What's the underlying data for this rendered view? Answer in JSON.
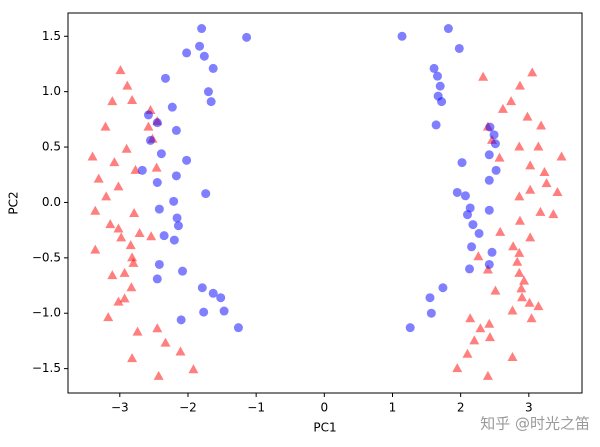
{
  "chart_data": {
    "type": "scatter",
    "x_label": "PC1",
    "y_label": "PC2",
    "xlim": [
      -3.76,
      3.78
    ],
    "ylim": [
      -1.72,
      1.71
    ],
    "xticks": [
      {
        "value": -3,
        "label": "−3"
      },
      {
        "value": -2,
        "label": "−2"
      },
      {
        "value": -1,
        "label": "−1"
      },
      0,
      1,
      2,
      3
    ],
    "yticks": [
      {
        "value": -1.5,
        "label": "−1.5"
      },
      {
        "value": -1.0,
        "label": "−1.0"
      },
      {
        "value": -0.5,
        "label": "−0.5"
      },
      {
        "value": 0.0,
        "label": "0.0"
      },
      0.5,
      {
        "value": 1.0,
        "label": "1.0"
      },
      1.5
    ],
    "alpha": 0.5,
    "series": [
      {
        "marker": "triangle",
        "color": "#ff0000",
        "x": [
          -2.99,
          -2.89,
          -3.11,
          -2.82,
          -2.55,
          -2.45,
          -2.58,
          -3.21,
          -2.52,
          -2.9,
          -3.4,
          -3.08,
          -2.77,
          -2.46,
          -3.31,
          -3.02,
          -3.2,
          -3.36,
          -2.79,
          -3.14,
          -3.02,
          -2.71,
          -2.98,
          -2.84,
          -2.54,
          -2.82,
          -2.8,
          -3.36,
          -2.93,
          -2.83,
          -3.11,
          -2.93,
          -3.02,
          -3.17,
          -2.45,
          -2.74,
          -2.33,
          -2.11,
          -2.82,
          -1.92,
          -2.43,
          2.33,
          3.05,
          2.87,
          2.74,
          2.62,
          2.98,
          3.18,
          2.4,
          2.46,
          2.86,
          3.14,
          3.48,
          2.57,
          3.02,
          3.23,
          3.26,
          3.42,
          3.02,
          2.86,
          3.17,
          3.36,
          2.87,
          2.58,
          3.02,
          2.77,
          2.86,
          2.26,
          2.83,
          2.4,
          2.86,
          2.93,
          2.89,
          2.9,
          3.01,
          3.14,
          2.51,
          2.76,
          3.04,
          2.14,
          2.29,
          2.42,
          2.43,
          2.2,
          2.76,
          2.1,
          1.95,
          2.4
        ],
        "y": [
          1.19,
          1.05,
          0.91,
          0.92,
          0.83,
          0.73,
          0.68,
          0.68,
          0.57,
          0.48,
          0.41,
          0.36,
          0.29,
          0.31,
          0.21,
          0.14,
          0.05,
          -0.08,
          -0.1,
          -0.2,
          -0.24,
          -0.28,
          -0.32,
          -0.39,
          -0.31,
          -0.5,
          -0.55,
          -0.43,
          -0.64,
          -0.77,
          -0.66,
          -0.87,
          -0.9,
          -1.04,
          -1.14,
          -1.17,
          -1.27,
          -1.35,
          -1.41,
          -1.51,
          -1.57,
          1.13,
          1.17,
          1.05,
          0.91,
          0.84,
          0.77,
          0.69,
          0.68,
          0.56,
          0.5,
          0.5,
          0.41,
          0.4,
          0.33,
          0.27,
          0.17,
          0.09,
          0.11,
          0.05,
          -0.09,
          -0.11,
          -0.17,
          -0.27,
          -0.32,
          -0.4,
          -0.46,
          -0.49,
          -0.54,
          -0.61,
          -0.64,
          -0.71,
          -0.78,
          -0.86,
          -0.91,
          -0.94,
          -0.8,
          -0.98,
          -1.05,
          -1.05,
          -1.14,
          -1.1,
          -1.22,
          -1.25,
          -1.4,
          -1.37,
          -1.5,
          -1.57
        ]
      },
      {
        "marker": "circle",
        "color": "#0000ff",
        "x": [
          -1.8,
          -1.14,
          -1.83,
          -2.02,
          -1.76,
          -1.63,
          -2.33,
          -1.7,
          -1.66,
          -2.23,
          -2.58,
          -2.45,
          -2.17,
          -2.55,
          -2.39,
          -2.02,
          -2.67,
          -2.17,
          -2.45,
          -1.74,
          -2.21,
          -2.42,
          -2.16,
          -2.14,
          -2.35,
          -2.2,
          -2.42,
          -2.08,
          -2.45,
          -1.79,
          -1.63,
          -1.52,
          -1.47,
          -1.77,
          -2.1,
          -1.26,
          1.14,
          1.82,
          1.98,
          1.61,
          1.66,
          1.7,
          1.67,
          1.72,
          1.64,
          2.43,
          2.49,
          2.51,
          2.42,
          2.02,
          2.52,
          2.42,
          1.95,
          2.07,
          2.14,
          2.42,
          2.1,
          2.18,
          2.27,
          2.16,
          2.46,
          2.13,
          2.42,
          1.55,
          1.74,
          1.57,
          1.26
        ],
        "y": [
          1.57,
          1.49,
          1.41,
          1.35,
          1.32,
          1.21,
          1.12,
          1.0,
          0.91,
          0.86,
          0.79,
          0.72,
          0.65,
          0.56,
          0.44,
          0.38,
          0.29,
          0.24,
          0.18,
          0.08,
          0.01,
          -0.06,
          -0.14,
          -0.21,
          -0.3,
          -0.34,
          -0.56,
          -0.62,
          -0.69,
          -0.77,
          -0.82,
          -0.86,
          -0.98,
          -0.99,
          -1.06,
          -1.13,
          1.5,
          1.57,
          1.39,
          1.21,
          1.14,
          1.05,
          0.96,
          0.91,
          0.7,
          0.68,
          0.61,
          0.53,
          0.43,
          0.36,
          0.29,
          0.2,
          0.09,
          0.06,
          -0.05,
          -0.07,
          -0.11,
          -0.2,
          -0.28,
          -0.4,
          -0.45,
          -0.6,
          -0.56,
          -0.86,
          -0.77,
          -1.0,
          -1.13
        ]
      }
    ]
  },
  "watermark": "知乎 @时光之笛"
}
